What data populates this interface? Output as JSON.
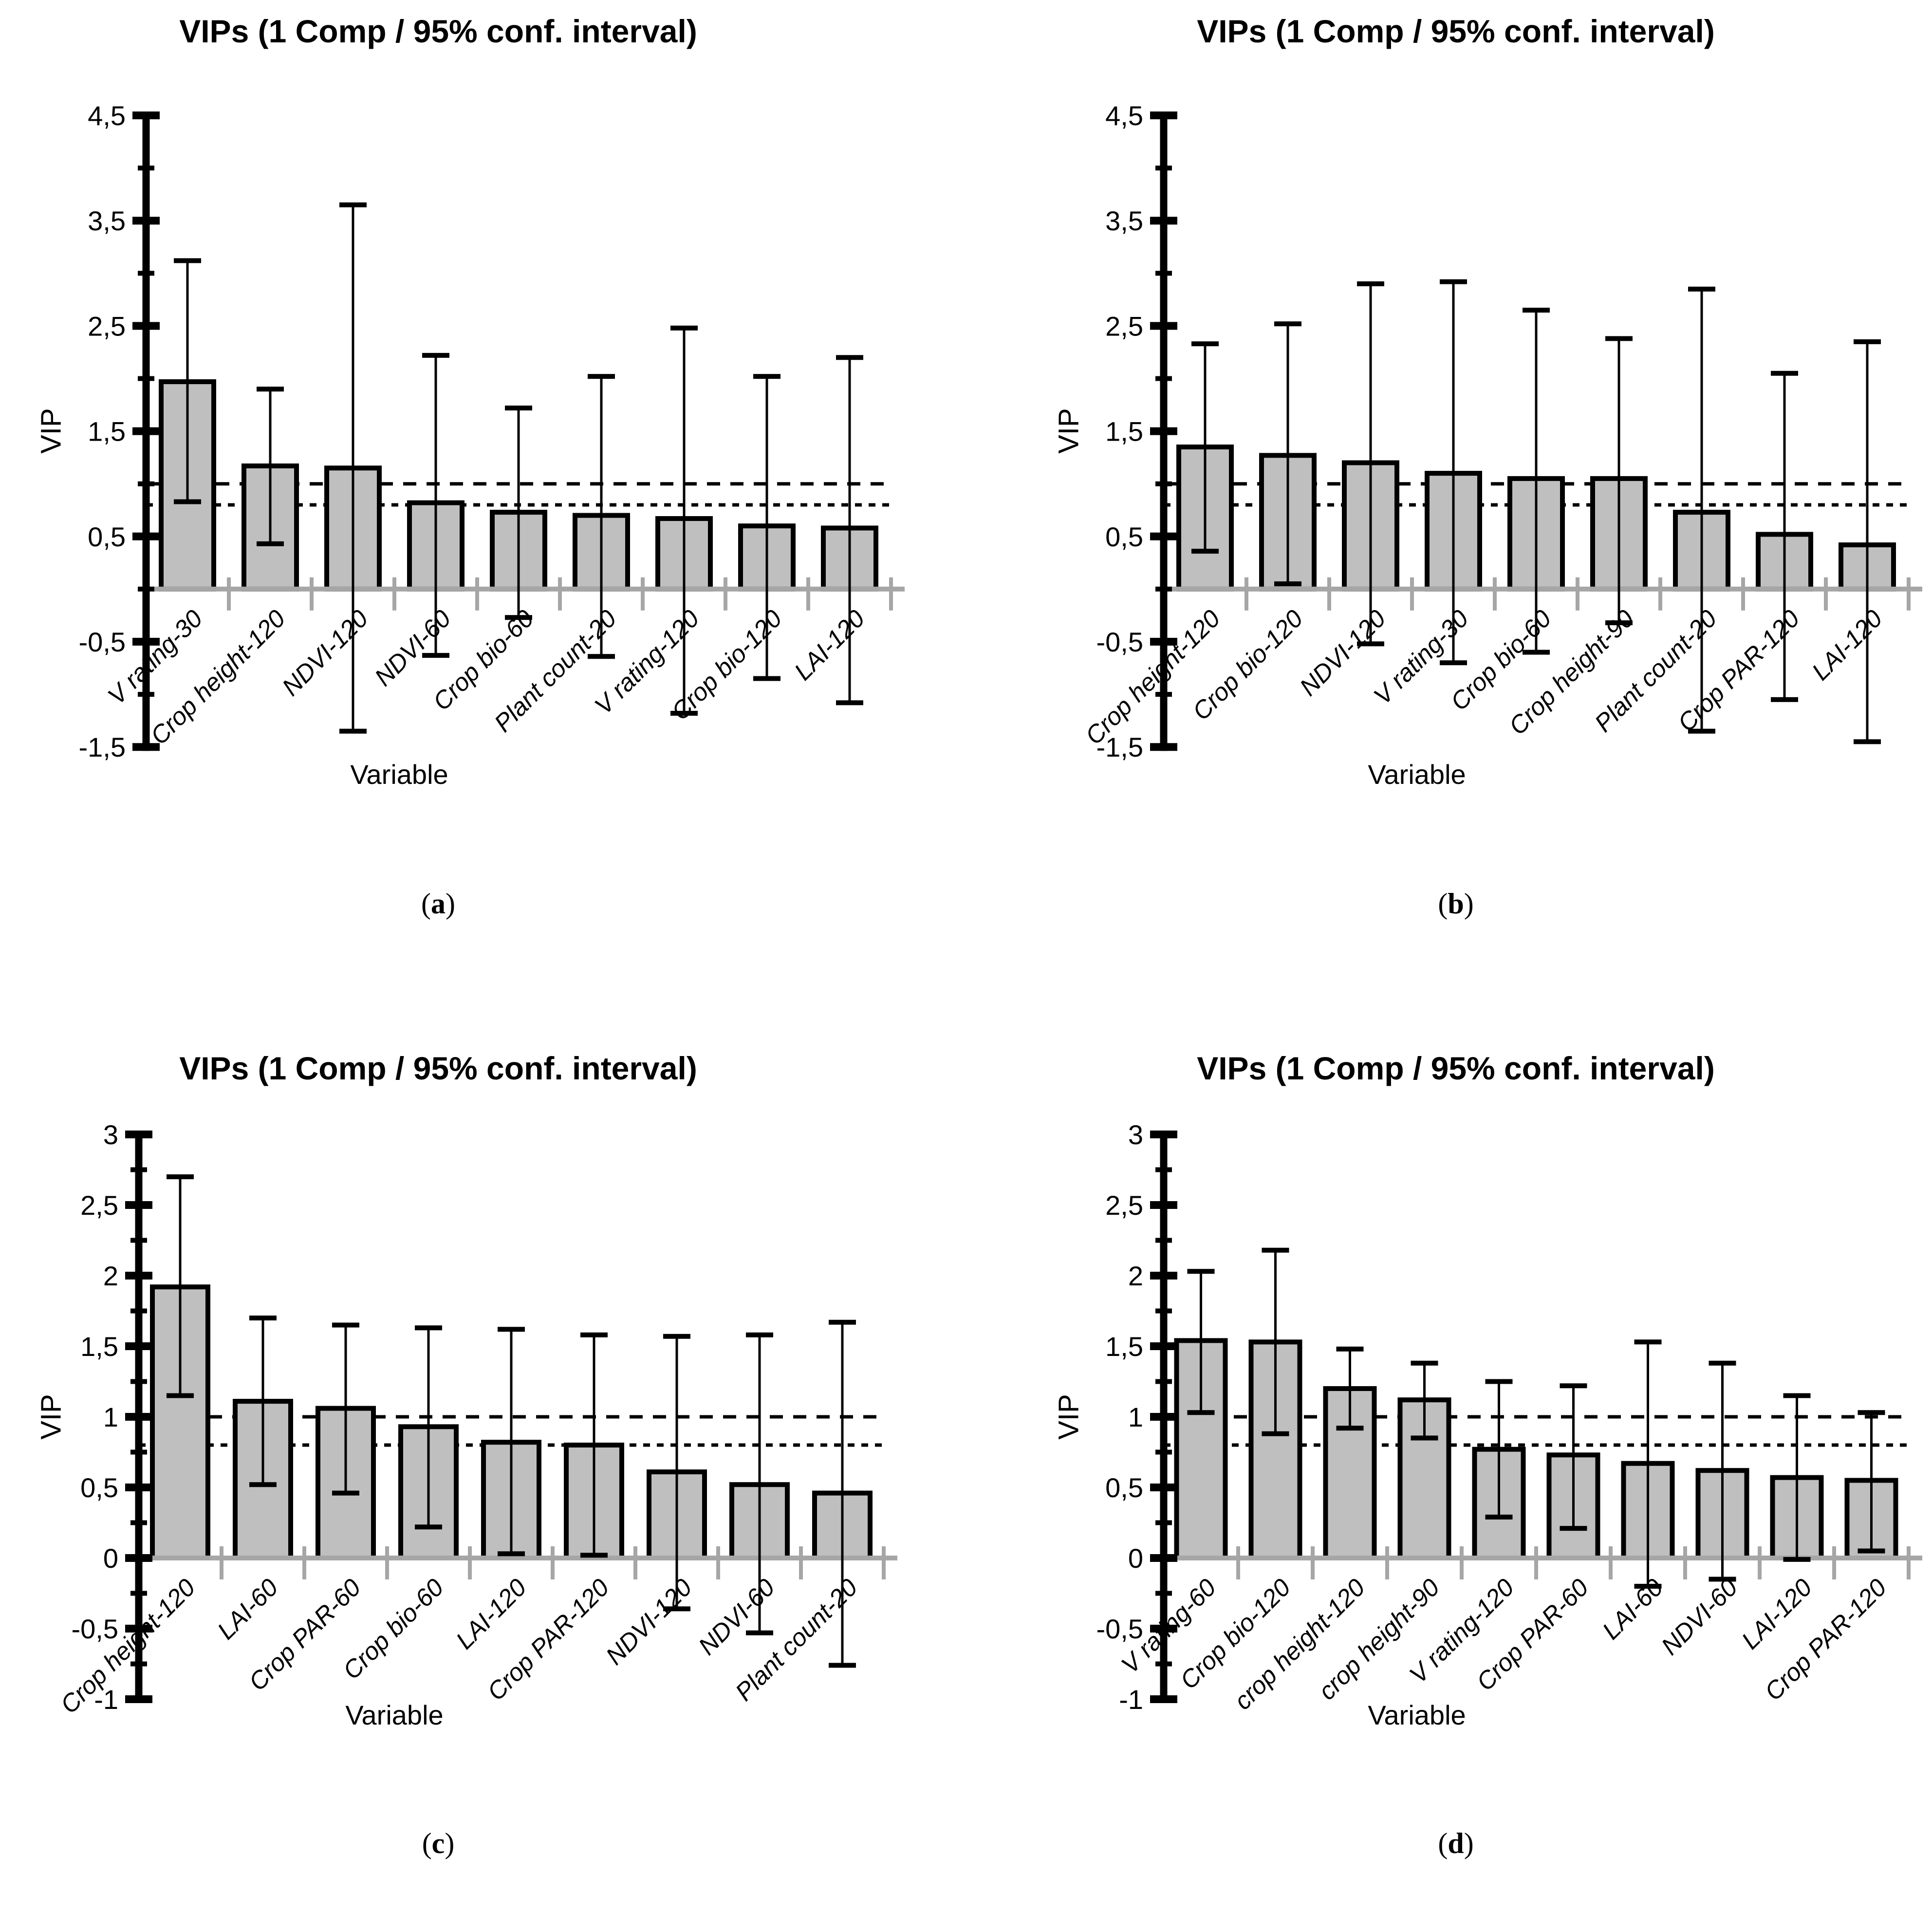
{
  "figure": {
    "background": "#ffffff",
    "bar_fill": "#bfbfbf",
    "bar_stroke": "#000000",
    "baseline_color": "#a6a6a6",
    "text_color": "#000000"
  },
  "chart_data": [
    {
      "id": "a",
      "type": "bar",
      "title": "VIPs (1 Comp / 95% conf. interval)",
      "ylabel": "VIP",
      "xlabel": "Variable",
      "caption": {
        "open": "(",
        "letter": "a",
        "close": ")"
      },
      "ylim": [
        -1.5,
        4.5
      ],
      "ytick_labels": [
        "4,5",
        "3,5",
        "2,5",
        "1,5",
        "0,5",
        "-0,5",
        "-1,5"
      ],
      "ytick_values": [
        4.5,
        3.5,
        2.5,
        1.5,
        0.5,
        -0.5,
        -1.5
      ],
      "minor_tick_values": [
        4,
        3,
        2,
        1,
        0,
        -1
      ],
      "threshold_lines": [
        1.0,
        0.8
      ],
      "grid": "off",
      "legend": "none",
      "categories": [
        "V rating-30",
        "Crop height-120",
        "NDVI-120",
        "NDVI-60",
        "Crop bio-60",
        "Plant count-20",
        "V rating-120",
        "Crop bio-120",
        "LAI-120"
      ],
      "values": [
        1.97,
        1.17,
        1.15,
        0.82,
        0.73,
        0.7,
        0.67,
        0.6,
        0.58
      ],
      "ci_low": [
        0.83,
        0.43,
        -1.35,
        -0.63,
        -0.27,
        -0.64,
        -1.18,
        -0.85,
        -1.08
      ],
      "ci_high": [
        3.12,
        1.9,
        3.65,
        2.22,
        1.72,
        2.02,
        2.48,
        2.02,
        2.2
      ]
    },
    {
      "id": "b",
      "type": "bar",
      "title": "VIPs (1 Comp / 95% conf. interval)",
      "ylabel": "VIP",
      "xlabel": "Variable",
      "caption": {
        "open": "(",
        "letter": "b",
        "close": ")"
      },
      "ylim": [
        -1.5,
        4.5
      ],
      "ytick_labels": [
        "4,5",
        "3,5",
        "2,5",
        "1,5",
        "0,5",
        "-0,5",
        "-1,5"
      ],
      "ytick_values": [
        4.5,
        3.5,
        2.5,
        1.5,
        0.5,
        -0.5,
        -1.5
      ],
      "minor_tick_values": [
        4,
        3,
        2,
        1,
        0,
        -1
      ],
      "threshold_lines": [
        1.0,
        0.8
      ],
      "grid": "off",
      "legend": "none",
      "categories": [
        "Crop height-120",
        "Crop bio-120",
        "NDVI-120",
        "V rating-30",
        "Crop bio-60",
        "Crop height-90",
        "Plant count-20",
        "Crop PAR-120",
        "LAI-120"
      ],
      "values": [
        1.35,
        1.27,
        1.2,
        1.1,
        1.05,
        1.05,
        0.73,
        0.52,
        0.42
      ],
      "ci_low": [
        0.36,
        0.05,
        -0.52,
        -0.7,
        -0.6,
        -0.32,
        -1.35,
        -1.05,
        -1.45
      ],
      "ci_high": [
        2.33,
        2.52,
        2.9,
        2.92,
        2.65,
        2.38,
        2.85,
        2.05,
        2.35
      ]
    },
    {
      "id": "c",
      "type": "bar",
      "title": "VIPs (1 Comp / 95% conf. interval)",
      "ylabel": "VIP",
      "xlabel": "Variable",
      "caption": {
        "open": "(",
        "letter": "c",
        "close": ")"
      },
      "ylim": [
        -1,
        3
      ],
      "ytick_labels": [
        "3",
        "2,5",
        "2",
        "1,5",
        "1",
        "0,5",
        "0",
        "-0,5",
        "-1"
      ],
      "ytick_values": [
        3,
        2.5,
        2,
        1.5,
        1,
        0.5,
        0,
        -0.5,
        -1
      ],
      "minor_tick_values": [
        2.75,
        2.25,
        1.75,
        1.25,
        0.75,
        0.25,
        -0.25,
        -0.75
      ],
      "threshold_lines": [
        1.0,
        0.8
      ],
      "grid": "off",
      "legend": "none",
      "categories": [
        "Crop height-120",
        "LAI-60",
        "Crop PAR-60",
        "Crop bio-60",
        "LAI-120",
        "Crop PAR-120",
        "NDVI-120",
        "NDVI-60",
        "Plant count-20"
      ],
      "values": [
        1.92,
        1.11,
        1.06,
        0.93,
        0.82,
        0.8,
        0.61,
        0.52,
        0.46
      ],
      "ci_low": [
        1.15,
        0.52,
        0.46,
        0.22,
        0.03,
        0.02,
        -0.36,
        -0.53,
        -0.76
      ],
      "ci_high": [
        2.7,
        1.7,
        1.65,
        1.63,
        1.62,
        1.58,
        1.57,
        1.58,
        1.67
      ]
    },
    {
      "id": "d",
      "type": "bar",
      "title": "VIPs (1 Comp / 95% conf. interval)",
      "ylabel": "VIP",
      "xlabel": "Variable",
      "caption": {
        "open": "(",
        "letter": "d",
        "close": ")"
      },
      "ylim": [
        -1,
        3
      ],
      "ytick_labels": [
        "3",
        "2,5",
        "2",
        "1,5",
        "1",
        "0,5",
        "0",
        "-0,5",
        "-1"
      ],
      "ytick_values": [
        3,
        2.5,
        2,
        1.5,
        1,
        0.5,
        0,
        -0.5,
        -1
      ],
      "minor_tick_values": [
        2.75,
        2.25,
        1.75,
        1.25,
        0.75,
        0.25,
        -0.25,
        -0.75
      ],
      "threshold_lines": [
        1.0,
        0.8
      ],
      "grid": "off",
      "legend": "none",
      "categories": [
        "V rating-60",
        "Crop bio-120",
        "crop height-120",
        "crop height-90",
        "V rating-120",
        "Crop PAR-60",
        "LAI-60",
        "NDVI-60",
        "LAI-120",
        "Crop PAR-120"
      ],
      "values": [
        1.54,
        1.53,
        1.2,
        1.12,
        0.77,
        0.73,
        0.67,
        0.62,
        0.57,
        0.55
      ],
      "ci_low": [
        1.03,
        0.88,
        0.92,
        0.85,
        0.29,
        0.21,
        -0.2,
        -0.15,
        -0.01,
        0.05
      ],
      "ci_high": [
        2.03,
        2.18,
        1.48,
        1.38,
        1.25,
        1.22,
        1.53,
        1.38,
        1.15,
        1.03
      ]
    }
  ]
}
